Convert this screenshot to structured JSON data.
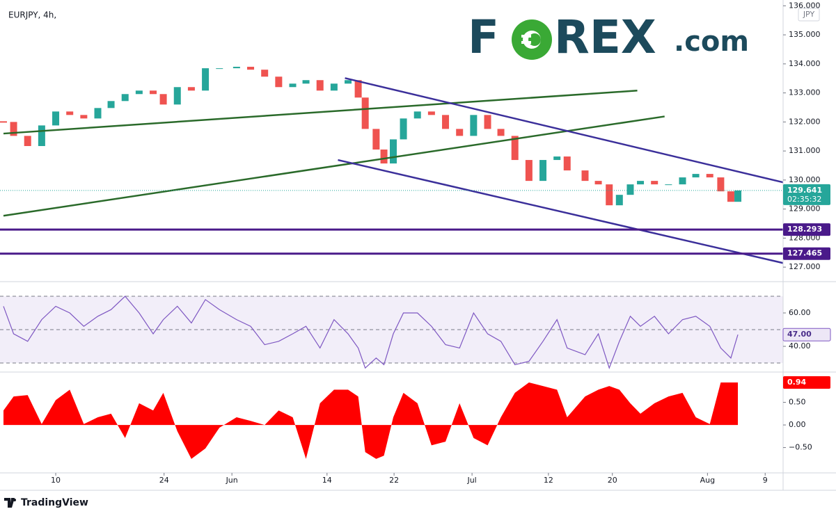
{
  "header": {
    "symbol": "EURJPY, 4h,",
    "currency": "JPY"
  },
  "logo": {
    "part1": "F",
    "part2": "REX",
    "part3": ".com"
  },
  "footer": {
    "brand": "TradingView"
  },
  "chart_data": [
    {
      "type": "candlestick",
      "x": [
        123.3,
        124.6,
        126.4,
        128.2,
        130.0,
        131.8,
        133.6,
        135.4,
        137.1,
        138.9,
        140.7,
        142.5,
        143.8,
        145.6,
        147.4,
        149.2,
        151.0,
        153.2,
        155.0,
        156.8,
        158.6,
        160.4,
        162.1,
        163.9,
        165.7,
        167.5,
        168.8,
        169.7,
        171.1,
        172.1,
        173.3,
        174.6,
        176.4,
        178.2,
        180.0,
        181.8,
        183.6,
        185.4,
        187.1,
        188.9,
        190.7,
        192.5,
        194.3,
        195.6,
        197.9,
        199.6,
        201.0,
        202.3,
        203.7,
        205.0,
        206.8,
        208.6,
        210.4,
        212.1,
        213.9,
        215.3,
        216.6,
        217.5
      ],
      "series": [
        {
          "name": "EURJPY",
          "up_color": "#26a69a",
          "down_color": "#ef5350",
          "values": [
            132.0,
            131.52,
            131.17,
            131.88,
            132.36,
            132.24,
            132.12,
            132.48,
            132.72,
            132.96,
            133.08,
            132.96,
            132.6,
            133.2,
            133.08,
            133.85,
            133.85,
            133.9,
            133.8,
            133.56,
            133.2,
            133.32,
            133.44,
            133.08,
            133.32,
            133.44,
            132.84,
            131.76,
            131.05,
            130.57,
            131.4,
            132.12,
            132.36,
            132.24,
            131.76,
            131.52,
            132.24,
            131.76,
            131.52,
            130.69,
            129.97,
            130.69,
            130.81,
            130.33,
            129.97,
            129.85,
            129.13,
            129.49,
            129.85,
            129.97,
            129.85,
            129.85,
            130.09,
            130.21,
            130.09,
            129.61,
            129.25,
            129.641
          ]
        }
      ],
      "xlim": [
        123.3,
        223.3
      ],
      "ylim": [
        126.5,
        136.2
      ],
      "yticks": [
        {
          "value": 127,
          "label": "127.000"
        },
        {
          "value": 128,
          "label": "128.000"
        },
        {
          "value": 129,
          "label": "129.000"
        },
        {
          "value": 130,
          "label": "130.000"
        },
        {
          "value": 131,
          "label": "131.000"
        },
        {
          "value": 132,
          "label": "132.000"
        },
        {
          "value": 133,
          "label": "133.000"
        },
        {
          "value": 134,
          "label": "134.000"
        },
        {
          "value": 135,
          "label": "135.000"
        },
        {
          "value": 136,
          "label": "136.000"
        }
      ],
      "trend_lines": [
        {
          "x": [
            123.3,
            204.6
          ],
          "y": [
            131.6,
            133.08
          ],
          "color": "#2a6a2a"
        },
        {
          "x": [
            123.3,
            208.1
          ],
          "y": [
            128.77,
            132.19
          ],
          "color": "#2a6a2a"
        },
        {
          "x": [
            167.1,
            223.3
          ],
          "y": [
            133.51,
            129.92
          ],
          "color": "#3b2f9a"
        },
        {
          "x": [
            166.2,
            223.3
          ],
          "y": [
            130.69,
            127.14
          ],
          "color": "#3b2f9a"
        }
      ],
      "levels": [
        {
          "value": 128.293,
          "color": "#4a1a8a"
        },
        {
          "value": 127.465,
          "color": "#4a1a8a"
        }
      ],
      "last": {
        "value": 129.641,
        "countdown": "02:35:32",
        "color": "#26a69a"
      }
    },
    {
      "type": "line",
      "x": [
        123.3,
        124.6,
        126.4,
        128.2,
        130.0,
        131.8,
        133.6,
        135.4,
        137.1,
        138.9,
        140.7,
        142.5,
        143.8,
        145.6,
        147.4,
        149.2,
        151.0,
        153.2,
        155.0,
        156.8,
        158.6,
        160.4,
        162.1,
        163.9,
        165.7,
        167.5,
        168.8,
        169.7,
        171.1,
        172.1,
        173.3,
        174.6,
        176.4,
        178.2,
        180.0,
        181.8,
        183.6,
        185.4,
        187.1,
        188.9,
        190.7,
        192.5,
        194.3,
        195.6,
        197.9,
        199.6,
        201.0,
        202.3,
        203.7,
        205.0,
        206.8,
        208.6,
        210.4,
        212.1,
        213.9,
        215.3,
        216.6,
        217.5
      ],
      "series": [
        {
          "name": "RSI",
          "color": "#7e57c2",
          "values": [
            64,
            47.5,
            43,
            56,
            64,
            60,
            52,
            58,
            62,
            70,
            60,
            47.5,
            56,
            64,
            54,
            68,
            62,
            56,
            52,
            41,
            43,
            47.5,
            52,
            39,
            56,
            47.5,
            39,
            27,
            33,
            29,
            47.5,
            60,
            60,
            52,
            41,
            39,
            60,
            47.5,
            43,
            29,
            31,
            43,
            56,
            39,
            35,
            47.5,
            27,
            43,
            58,
            52,
            58,
            47.5,
            56,
            58,
            52,
            39,
            33,
            47
          ]
        }
      ],
      "xlim": [
        123.3,
        223.3
      ],
      "ylim": [
        24.6,
        78.75
      ],
      "yticks": [
        {
          "value": 60,
          "label": "60.00"
        },
        {
          "value": 40,
          "label": "40.00"
        }
      ],
      "band": [
        30,
        70
      ],
      "band_mid": 50,
      "last": {
        "value": 47,
        "label": "47.00"
      }
    },
    {
      "type": "area",
      "x": [
        123.3,
        124.6,
        126.4,
        128.2,
        130.0,
        131.8,
        133.6,
        135.4,
        137.1,
        138.9,
        140.7,
        142.5,
        143.8,
        145.6,
        147.4,
        149.2,
        151.0,
        153.2,
        155.0,
        156.8,
        158.6,
        160.4,
        162.1,
        163.9,
        165.7,
        167.5,
        168.8,
        169.7,
        171.1,
        172.1,
        173.3,
        174.6,
        176.4,
        178.2,
        180.0,
        181.8,
        183.6,
        185.4,
        187.1,
        188.9,
        190.7,
        192.5,
        194.3,
        195.6,
        197.9,
        199.6,
        201.0,
        202.3,
        203.7,
        205.0,
        206.8,
        208.6,
        210.4,
        212.1,
        213.9,
        215.3,
        216.6,
        217.5
      ],
      "series": [
        {
          "name": "Correlation",
          "color": "#ff0000",
          "values": [
            0.32,
            0.63,
            0.66,
            0.02,
            0.55,
            0.78,
            0.02,
            0.17,
            0.25,
            -0.29,
            0.48,
            0.32,
            0.71,
            -0.14,
            -0.75,
            -0.52,
            -0.06,
            0.17,
            0.09,
            0,
            0.32,
            0.17,
            -0.75,
            0.48,
            0.78,
            0.78,
            0.63,
            -0.6,
            -0.75,
            -0.68,
            0.17,
            0.71,
            0.48,
            -0.45,
            -0.37,
            0.48,
            -0.29,
            -0.45,
            0.17,
            0.71,
            0.94,
            0.86,
            0.78,
            0.17,
            0.63,
            0.78,
            0.86,
            0.78,
            0.48,
            0.25,
            0.48,
            0.63,
            0.71,
            0.17,
            0.02,
            0.94,
            0.94,
            0.94
          ]
        }
      ],
      "xlim": [
        123.3,
        223.3
      ],
      "ylim": [
        -1.06,
        1.17
      ],
      "yticks": [
        {
          "value": 0.5,
          "label": "0.50"
        },
        {
          "value": 0,
          "label": "0.00"
        },
        {
          "value": -0.5,
          "label": "−0.50"
        }
      ],
      "xticks": [
        {
          "value": 130,
          "label": "10"
        },
        {
          "value": 143.9,
          "label": "24"
        },
        {
          "value": 152.6,
          "label": "Jun"
        },
        {
          "value": 164.8,
          "label": "14"
        },
        {
          "value": 173.4,
          "label": "22"
        },
        {
          "value": 183.4,
          "label": "Jul"
        },
        {
          "value": 193.2,
          "label": "12"
        },
        {
          "value": 201.4,
          "label": "20"
        },
        {
          "value": 213.6,
          "label": "Aug"
        },
        {
          "value": 221.0,
          "label": "9"
        }
      ],
      "last": {
        "value": 0.94,
        "color": "#ff0000"
      }
    }
  ]
}
